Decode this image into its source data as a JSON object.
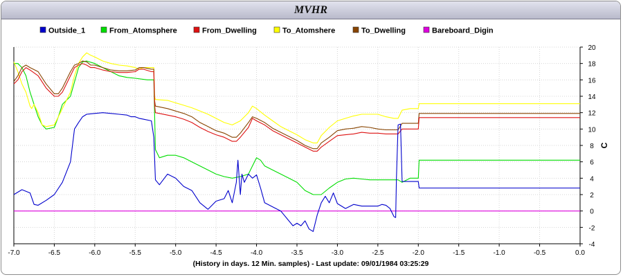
{
  "header": {
    "title": "MVHR"
  },
  "chart_data": {
    "type": "line",
    "title": "MVHR",
    "xlabel": "(History in days. 12 Min. samples) - Last update: 09/01/1984 03:25:29",
    "ylabel": "C",
    "xlim": [
      -7.0,
      0.0
    ],
    "ylim": [
      -4,
      20
    ],
    "x_ticks": [
      "-7.0",
      "-6.5",
      "-6.0",
      "-5.5",
      "-5.0",
      "-4.5",
      "-4.0",
      "-3.5",
      "-3.0",
      "-2.5",
      "-2.0",
      "-1.5",
      "-1.0",
      "-0.5",
      "0.0"
    ],
    "y_ticks": [
      "-4",
      "-2",
      "0",
      "2",
      "4",
      "6",
      "8",
      "10",
      "12",
      "14",
      "16",
      "18",
      "20"
    ],
    "grid": true,
    "legend_position": "top",
    "series": [
      {
        "name": "Outside_1",
        "color": "#0000cc",
        "x": [
          -7.0,
          -6.9,
          -6.8,
          -6.75,
          -6.7,
          -6.6,
          -6.5,
          -6.4,
          -6.3,
          -6.25,
          -6.2,
          -6.15,
          -6.1,
          -6.0,
          -5.9,
          -5.8,
          -5.7,
          -5.6,
          -5.55,
          -5.5,
          -5.45,
          -5.4,
          -5.3,
          -5.27,
          -5.25,
          -5.2,
          -5.1,
          -5.0,
          -4.9,
          -4.8,
          -4.7,
          -4.6,
          -4.5,
          -4.4,
          -4.35,
          -4.3,
          -4.25,
          -4.23,
          -4.2,
          -4.18,
          -4.15,
          -4.1,
          -4.05,
          -4.0,
          -3.95,
          -3.9,
          -3.8,
          -3.7,
          -3.6,
          -3.55,
          -3.5,
          -3.45,
          -3.4,
          -3.35,
          -3.3,
          -3.25,
          -3.2,
          -3.15,
          -3.1,
          -3.05,
          -3.0,
          -2.9,
          -2.8,
          -2.7,
          -2.6,
          -2.5,
          -2.45,
          -2.4,
          -2.35,
          -2.3,
          -2.28,
          -2.27,
          -2.25,
          -2.22,
          -2.2,
          -2.1,
          -2.0,
          -1.99,
          -1.5,
          -1.0,
          -0.5,
          0.0
        ],
        "y": [
          2.0,
          2.6,
          2.2,
          0.8,
          0.7,
          1.3,
          2.0,
          3.5,
          6.0,
          10.0,
          10.8,
          11.5,
          11.8,
          11.9,
          12.0,
          11.9,
          11.8,
          11.7,
          11.5,
          11.5,
          11.3,
          11.2,
          11.0,
          9.0,
          3.8,
          3.2,
          4.5,
          4.0,
          3.0,
          2.5,
          1.0,
          0.2,
          1.2,
          1.5,
          2.5,
          1.0,
          3.5,
          6.2,
          2.0,
          4.5,
          3.5,
          4.5,
          4.0,
          4.4,
          2.8,
          1.0,
          0.5,
          0.0,
          -1.2,
          -1.8,
          -1.5,
          -1.8,
          -1.2,
          -2.2,
          -2.5,
          -0.5,
          1.0,
          1.8,
          1.0,
          2.2,
          0.9,
          0.3,
          0.8,
          0.6,
          0.6,
          0.6,
          0.8,
          0.7,
          0.3,
          -0.7,
          -0.8,
          4.0,
          10.5,
          10.6,
          3.6,
          3.6,
          3.6,
          2.8,
          2.8,
          2.8,
          2.8,
          2.8
        ]
      },
      {
        "name": "From_Atomsphere",
        "color": "#00dd00",
        "x": [
          -7.0,
          -6.95,
          -6.9,
          -6.85,
          -6.8,
          -6.75,
          -6.7,
          -6.65,
          -6.6,
          -6.5,
          -6.45,
          -6.4,
          -6.3,
          -6.2,
          -6.15,
          -6.1,
          -6.0,
          -5.9,
          -5.8,
          -5.7,
          -5.6,
          -5.5,
          -5.35,
          -5.27,
          -5.26,
          -5.25,
          -5.2,
          -5.1,
          -5.0,
          -4.9,
          -4.8,
          -4.7,
          -4.6,
          -4.5,
          -4.4,
          -4.3,
          -4.2,
          -4.1,
          -4.05,
          -4.0,
          -3.95,
          -3.9,
          -3.8,
          -3.7,
          -3.6,
          -3.5,
          -3.4,
          -3.3,
          -3.2,
          -3.1,
          -3.0,
          -2.9,
          -2.8,
          -2.7,
          -2.6,
          -2.5,
          -2.4,
          -2.3,
          -2.25,
          -2.2,
          -2.1,
          -2.0,
          -1.99,
          -1.5,
          -1.0,
          -0.5,
          0.0
        ],
        "y": [
          18.0,
          18.0,
          17.5,
          16.5,
          14.5,
          13.0,
          11.5,
          10.5,
          10.0,
          10.2,
          11.5,
          13.0,
          14.0,
          17.5,
          18.2,
          18.3,
          18.0,
          17.5,
          17.0,
          16.5,
          16.3,
          16.2,
          16.0,
          16.0,
          12.0,
          7.5,
          6.5,
          6.8,
          6.8,
          6.5,
          6.0,
          5.5,
          5.0,
          4.5,
          4.2,
          4.0,
          4.2,
          4.5,
          5.5,
          6.5,
          6.2,
          5.5,
          5.0,
          4.5,
          4.0,
          3.5,
          2.5,
          2.0,
          2.0,
          2.8,
          3.5,
          3.9,
          4.0,
          3.9,
          3.8,
          3.8,
          3.8,
          3.8,
          3.8,
          3.5,
          4.0,
          4.0,
          6.2,
          6.2,
          6.2,
          6.2,
          6.2
        ]
      },
      {
        "name": "From_Dwelling",
        "color": "#dd1111",
        "x": [
          -7.0,
          -6.95,
          -6.9,
          -6.85,
          -6.8,
          -6.7,
          -6.6,
          -6.5,
          -6.45,
          -6.4,
          -6.35,
          -6.3,
          -6.25,
          -6.2,
          -6.15,
          -6.1,
          -6.05,
          -6.0,
          -5.9,
          -5.8,
          -5.7,
          -5.6,
          -5.5,
          -5.45,
          -5.4,
          -5.3,
          -5.27,
          -5.26,
          -5.25,
          -5.1,
          -5.0,
          -4.9,
          -4.8,
          -4.7,
          -4.6,
          -4.5,
          -4.4,
          -4.3,
          -4.25,
          -4.2,
          -4.1,
          -4.05,
          -4.0,
          -3.9,
          -3.8,
          -3.7,
          -3.6,
          -3.5,
          -3.4,
          -3.3,
          -3.25,
          -3.2,
          -3.1,
          -3.0,
          -2.9,
          -2.8,
          -2.7,
          -2.6,
          -2.5,
          -2.4,
          -2.3,
          -2.25,
          -2.2,
          -2.1,
          -2.0,
          -1.99,
          -1.5,
          -1.0,
          -0.5,
          0.0
        ],
        "y": [
          15.5,
          16.0,
          17.0,
          17.5,
          17.2,
          16.5,
          15.0,
          14.0,
          14.0,
          14.5,
          15.5,
          16.5,
          17.5,
          17.8,
          18.0,
          17.8,
          17.5,
          17.5,
          17.2,
          17.0,
          16.9,
          16.9,
          17.0,
          17.3,
          17.3,
          17.0,
          17.0,
          13.0,
          12.0,
          11.7,
          11.5,
          11.2,
          10.8,
          10.2,
          9.7,
          9.3,
          9.0,
          8.5,
          8.5,
          9.0,
          10.2,
          11.3,
          11.0,
          10.5,
          9.8,
          9.3,
          8.8,
          8.3,
          7.8,
          7.3,
          7.3,
          7.8,
          8.5,
          9.2,
          9.3,
          9.4,
          9.6,
          9.5,
          9.5,
          9.4,
          9.4,
          9.4,
          10.0,
          10.0,
          10.0,
          11.4,
          11.4,
          11.4,
          11.4,
          11.4
        ]
      },
      {
        "name": "To_Atomshere",
        "color": "#ffff00",
        "x": [
          -7.0,
          -6.95,
          -6.9,
          -6.85,
          -6.82,
          -6.8,
          -6.78,
          -6.75,
          -6.7,
          -6.65,
          -6.6,
          -6.5,
          -6.45,
          -6.4,
          -6.3,
          -6.25,
          -6.2,
          -6.15,
          -6.1,
          -6.05,
          -6.0,
          -5.9,
          -5.8,
          -5.7,
          -5.6,
          -5.5,
          -5.45,
          -5.4,
          -5.3,
          -5.27,
          -5.26,
          -5.25,
          -5.1,
          -5.0,
          -4.9,
          -4.8,
          -4.7,
          -4.6,
          -4.5,
          -4.4,
          -4.3,
          -4.2,
          -4.1,
          -4.05,
          -4.0,
          -3.9,
          -3.8,
          -3.7,
          -3.6,
          -3.5,
          -3.4,
          -3.3,
          -3.25,
          -3.2,
          -3.1,
          -3.0,
          -2.9,
          -2.8,
          -2.7,
          -2.6,
          -2.5,
          -2.4,
          -2.3,
          -2.25,
          -2.2,
          -2.1,
          -2.0,
          -1.99,
          -1.5,
          -1.0,
          -0.5,
          0.0
        ],
        "y": [
          18.2,
          17.0,
          15.5,
          14.5,
          13.5,
          12.8,
          12.5,
          13.0,
          12.0,
          10.5,
          10.3,
          10.5,
          11.5,
          12.5,
          14.5,
          16.5,
          18.0,
          18.8,
          19.3,
          19.0,
          18.8,
          18.3,
          18.0,
          17.8,
          17.7,
          17.5,
          17.3,
          17.5,
          17.5,
          17.5,
          14.0,
          13.6,
          13.5,
          13.2,
          12.9,
          12.6,
          12.2,
          11.8,
          11.3,
          10.8,
          10.5,
          11.0,
          12.0,
          12.8,
          12.5,
          11.7,
          11.0,
          10.3,
          9.8,
          9.3,
          8.7,
          8.3,
          8.3,
          9.2,
          10.2,
          11.0,
          11.3,
          11.6,
          11.8,
          11.8,
          11.8,
          11.5,
          11.3,
          11.3,
          12.3,
          12.5,
          12.5,
          13.1,
          13.1,
          13.1,
          13.1,
          13.1
        ]
      },
      {
        "name": "To_Dwelling",
        "color": "#884400",
        "x": [
          -7.0,
          -6.95,
          -6.9,
          -6.85,
          -6.8,
          -6.7,
          -6.6,
          -6.5,
          -6.45,
          -6.4,
          -6.35,
          -6.3,
          -6.25,
          -6.2,
          -6.15,
          -6.1,
          -6.05,
          -6.0,
          -5.9,
          -5.8,
          -5.7,
          -5.6,
          -5.5,
          -5.45,
          -5.4,
          -5.3,
          -5.27,
          -5.26,
          -5.25,
          -5.1,
          -5.0,
          -4.9,
          -4.8,
          -4.7,
          -4.6,
          -4.5,
          -4.4,
          -4.3,
          -4.25,
          -4.2,
          -4.1,
          -4.05,
          -4.0,
          -3.9,
          -3.8,
          -3.7,
          -3.6,
          -3.5,
          -3.4,
          -3.3,
          -3.25,
          -3.2,
          -3.1,
          -3.0,
          -2.9,
          -2.8,
          -2.7,
          -2.6,
          -2.5,
          -2.4,
          -2.3,
          -2.25,
          -2.2,
          -2.1,
          -2.0,
          -1.99,
          -1.5,
          -1.0,
          -0.5,
          0.0
        ],
        "y": [
          15.8,
          16.5,
          17.5,
          17.8,
          17.5,
          17.0,
          15.5,
          14.3,
          14.3,
          15.0,
          16.0,
          17.0,
          17.8,
          18.0,
          18.3,
          18.2,
          17.8,
          17.8,
          17.5,
          17.2,
          17.1,
          17.1,
          17.2,
          17.5,
          17.5,
          17.3,
          17.3,
          13.5,
          12.8,
          12.5,
          12.2,
          11.9,
          11.5,
          10.8,
          10.3,
          9.8,
          9.5,
          9.0,
          9.0,
          9.5,
          10.8,
          11.5,
          11.3,
          10.8,
          10.1,
          9.6,
          9.1,
          8.6,
          8.0,
          7.6,
          7.6,
          8.3,
          9.0,
          9.8,
          10.0,
          10.1,
          10.3,
          10.2,
          10.0,
          9.9,
          9.9,
          9.9,
          10.7,
          10.7,
          10.7,
          11.9,
          11.9,
          11.9,
          11.9,
          11.9
        ]
      },
      {
        "name": "Bareboard_Digin",
        "color": "#dd00dd",
        "x": [
          -7.0,
          0.0
        ],
        "y": [
          0.0,
          0.0
        ]
      }
    ]
  }
}
